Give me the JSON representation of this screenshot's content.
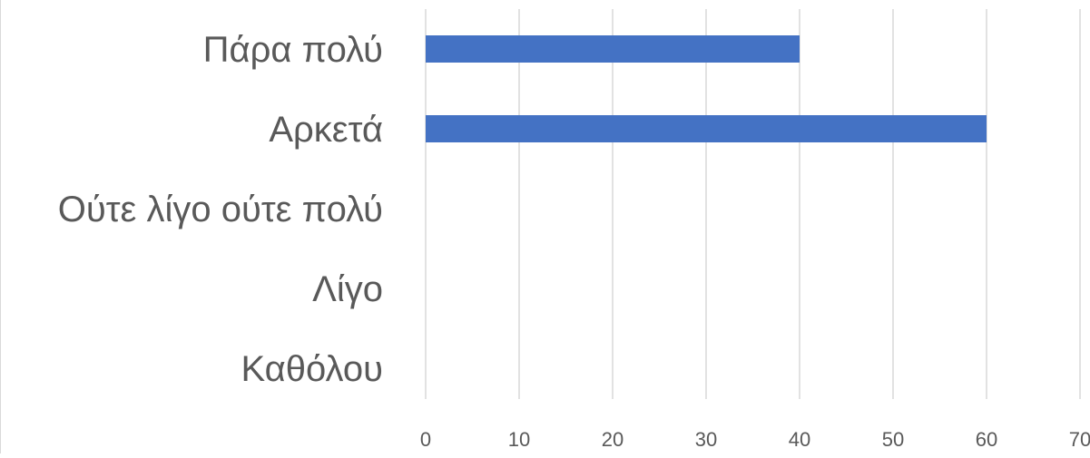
{
  "chart_data": {
    "type": "bar",
    "orientation": "horizontal",
    "categories": [
      "Πάρα πολύ",
      "Αρκετά",
      "Ούτε λίγο ούτε πολύ",
      "Λίγο",
      "Καθόλου"
    ],
    "values": [
      40,
      60,
      0,
      0,
      0
    ],
    "xlim": [
      0,
      70
    ],
    "xticks": [
      "0",
      "10",
      "20",
      "30",
      "40",
      "50",
      "60",
      "70"
    ],
    "grid": true,
    "bar_color": "#4472c4",
    "grid_color": "#d9d9d9",
    "label_color": "#595959"
  }
}
